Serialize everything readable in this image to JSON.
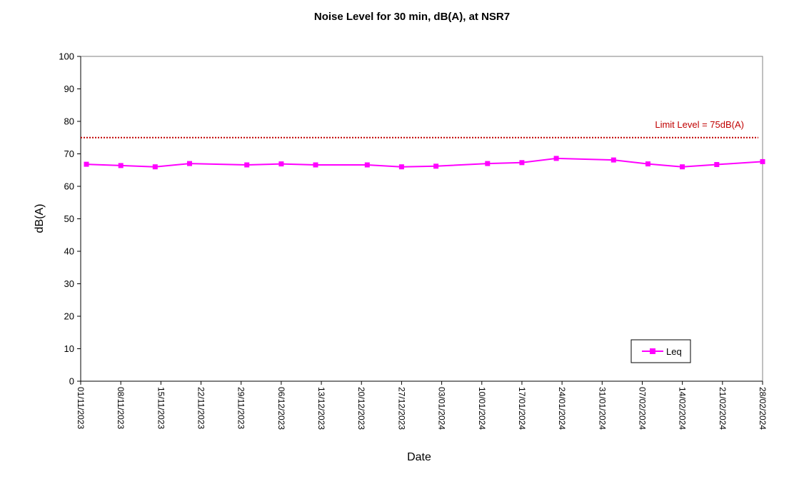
{
  "chart_data": {
    "type": "line",
    "title": "Noise Level for 30 min, dB(A), at NSR7",
    "xlabel": "Date",
    "ylabel": "dB(A)",
    "ylim": [
      0,
      100
    ],
    "yticks": [
      0,
      10,
      20,
      30,
      40,
      50,
      60,
      70,
      80,
      90,
      100
    ],
    "xlim": [
      "01/11/2023",
      "28/02/2024"
    ],
    "xtick_labels": [
      "01/11/2023",
      "08/11/2023",
      "15/11/2023",
      "22/11/2023",
      "29/11/2023",
      "06/12/2023",
      "13/12/2023",
      "20/12/2023",
      "27/12/2023",
      "03/01/2024",
      "10/01/2024",
      "17/01/2024",
      "24/01/2024",
      "31/01/2024",
      "07/02/2024",
      "14/02/2024",
      "21/02/2024",
      "28/02/2024"
    ],
    "grid": false,
    "limit_line": {
      "value": 75,
      "label": "Limit Level  = 75dB(A)",
      "color": "#c00000",
      "style": "dotted"
    },
    "legend": {
      "position": "bottom-right",
      "entries": [
        "Leq"
      ]
    },
    "series": [
      {
        "name": "Leq",
        "color": "#ff00ff",
        "marker": "square",
        "points": [
          {
            "x": "02/11/2023",
            "y": 66.8
          },
          {
            "x": "08/11/2023",
            "y": 66.4
          },
          {
            "x": "14/11/2023",
            "y": 66.0
          },
          {
            "x": "20/11/2023",
            "y": 67.0
          },
          {
            "x": "30/11/2023",
            "y": 66.6
          },
          {
            "x": "06/12/2023",
            "y": 66.9
          },
          {
            "x": "12/12/2023",
            "y": 66.6
          },
          {
            "x": "21/12/2023",
            "y": 66.6
          },
          {
            "x": "27/12/2023",
            "y": 66.0
          },
          {
            "x": "02/01/2024",
            "y": 66.2
          },
          {
            "x": "11/01/2024",
            "y": 67.0
          },
          {
            "x": "17/01/2024",
            "y": 67.3
          },
          {
            "x": "23/01/2024",
            "y": 68.6
          },
          {
            "x": "02/02/2024",
            "y": 68.1
          },
          {
            "x": "08/02/2024",
            "y": 66.9
          },
          {
            "x": "14/02/2024",
            "y": 66.0
          },
          {
            "x": "20/02/2024",
            "y": 66.7
          },
          {
            "x": "28/02/2024",
            "y": 67.6
          }
        ]
      }
    ]
  }
}
